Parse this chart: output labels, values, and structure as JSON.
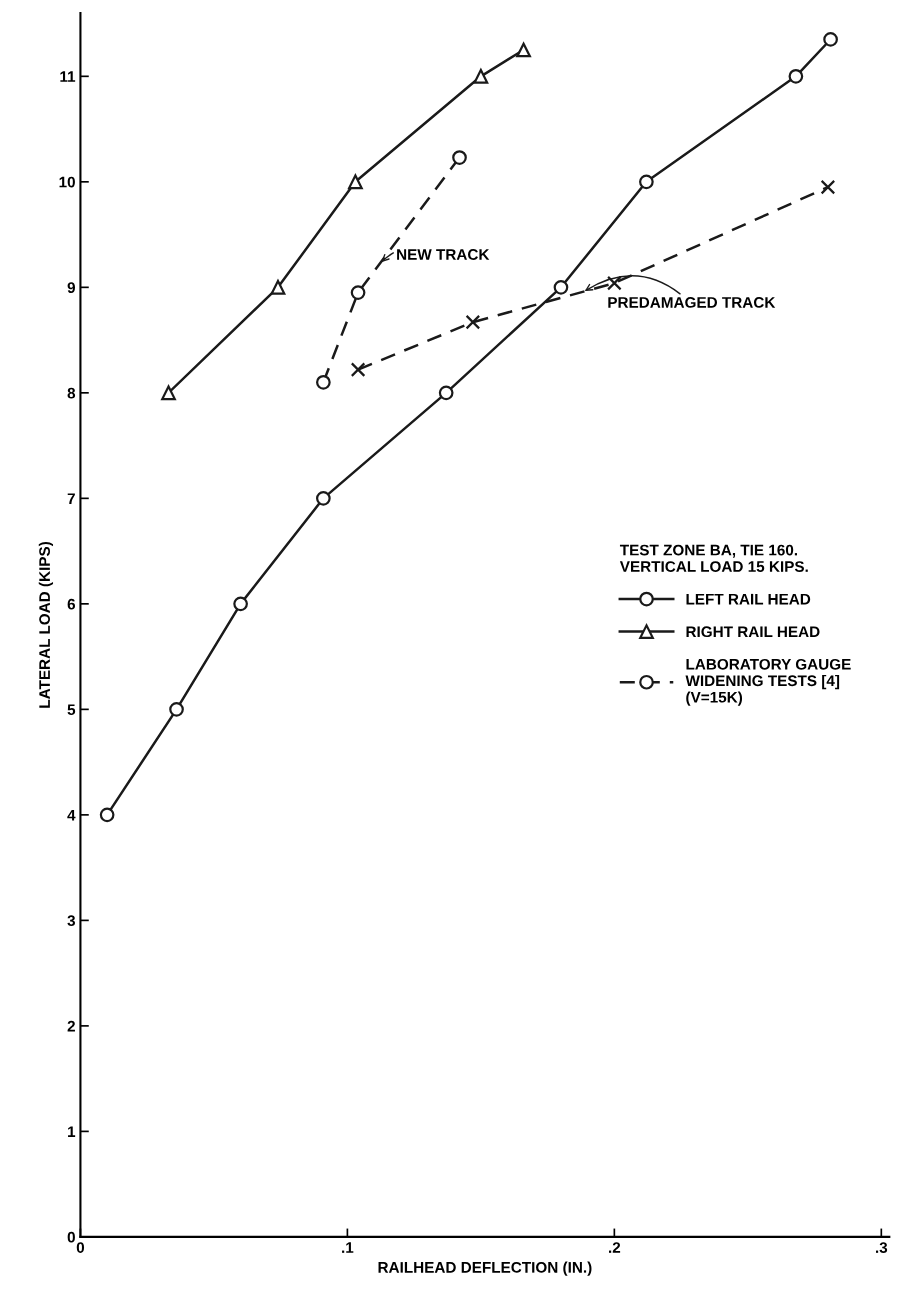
{
  "chart_data": {
    "type": "line",
    "xlabel": "RAILHEAD DEFLECTION (IN.)",
    "ylabel": "LATERAL LOAD (KIPS)",
    "legend_title": "TEST ZONE BA, TIE 160.\nVERTICAL LOAD 15 KIPS.",
    "series": [
      {
        "name": "LEFT RAIL HEAD",
        "color": "#1a1a1a",
        "marker": "circle",
        "line_style": "solid",
        "x": [
          0.01,
          0.036,
          0.06,
          0.091,
          0.137,
          0.18,
          0.212,
          0.268,
          0.281
        ],
        "values": [
          4,
          5,
          6,
          7,
          8,
          9,
          10,
          11,
          11.35
        ]
      },
      {
        "name": "RIGHT RAIL HEAD",
        "color": "#1a1a1a",
        "marker": "triangle",
        "line_style": "solid",
        "x": [
          0.033,
          0.074,
          0.103,
          0.15,
          0.166
        ],
        "values": [
          8,
          9,
          10,
          11,
          11.25
        ]
      },
      {
        "name": "LABORATORY GAUGE\nWIDENING TESTS [4]\n(V=15K)",
        "color": "#1a1a1a",
        "marker": "circle",
        "line_style": "dashed",
        "x": [
          0.091,
          0.104,
          0.142
        ],
        "values": [
          8.1,
          8.95,
          10.23
        ]
      },
      {
        "color": "#1a1a1a",
        "marker": "cross",
        "line_style": "dashed",
        "x": [
          0.104,
          0.147,
          0.2,
          0.28
        ],
        "values": [
          8.22,
          8.67,
          9.04,
          9.95
        ]
      }
    ],
    "annotations": [
      {
        "text": "NEW TRACK",
        "x": 0.112,
        "y": 9.22
      },
      {
        "text": "PREDAMAGED TRACK",
        "x": 0.188,
        "y": 8.95
      }
    ],
    "xlim": [
      0,
      0.303
    ],
    "ylim": [
      0,
      11.6
    ],
    "xticks": [
      0,
      {
        "value": 0.1,
        "label": ".1"
      },
      {
        "value": 0.2,
        "label": ".2"
      },
      {
        "value": 0.3,
        "label": ".3"
      }
    ],
    "yticks": [
      0,
      1,
      2,
      3,
      4,
      5,
      6,
      7,
      8,
      9,
      10,
      11
    ],
    "grid": false,
    "legend": "right"
  }
}
